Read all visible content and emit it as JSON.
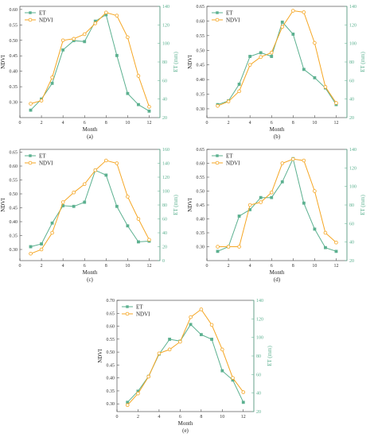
{
  "chart_data": [
    {
      "type": "line",
      "panel_label": "(a)",
      "xlabel": "Month",
      "ylabel": "NDVI",
      "y2label": "ET (mm)",
      "xlim": [
        0,
        13
      ],
      "ylim": [
        0.25,
        0.61
      ],
      "y2lim": [
        20,
        140
      ],
      "xticks": [
        0,
        2,
        4,
        6,
        8,
        10,
        12
      ],
      "yticks": [
        0.3,
        0.35,
        0.4,
        0.45,
        0.5,
        0.55,
        0.6
      ],
      "y2ticks": [
        20,
        40,
        60,
        80,
        100,
        120,
        140
      ],
      "legend": "top-left",
      "x": [
        1,
        2,
        3,
        4,
        5,
        6,
        7,
        8,
        9,
        10,
        11,
        12
      ],
      "series": [
        {
          "name": "ET",
          "axis": "right",
          "color": "#5bb08f",
          "marker": "square",
          "values": [
            28,
            40,
            57,
            93,
            103,
            102,
            124,
            131,
            87,
            46,
            34,
            27
          ]
        },
        {
          "name": "NDVI",
          "axis": "left",
          "color": "#f5a623",
          "marker": "circle",
          "values": [
            0.295,
            0.305,
            0.38,
            0.5,
            0.505,
            0.52,
            0.555,
            0.59,
            0.58,
            0.51,
            0.385,
            0.285
          ]
        }
      ]
    },
    {
      "type": "line",
      "panel_label": "(b)",
      "xlabel": "Month",
      "ylabel": "NDVI",
      "y2label": "ET (mm)",
      "xlim": [
        0,
        13
      ],
      "ylim": [
        0.27,
        0.65
      ],
      "y2lim": [
        20,
        140
      ],
      "xticks": [
        0,
        2,
        4,
        6,
        8,
        10,
        12
      ],
      "yticks": [
        0.3,
        0.35,
        0.4,
        0.45,
        0.5,
        0.55,
        0.6,
        0.65
      ],
      "y2ticks": [
        20,
        40,
        60,
        80,
        100,
        120,
        140
      ],
      "legend": "top-left",
      "x": [
        1,
        2,
        3,
        4,
        5,
        6,
        7,
        8,
        9,
        10,
        11,
        12
      ],
      "series": [
        {
          "name": "ET",
          "axis": "right",
          "color": "#5bb08f",
          "marker": "square",
          "values": [
            34,
            38,
            56,
            86,
            90,
            86,
            123,
            110,
            72,
            63,
            52,
            34
          ]
        },
        {
          "name": "NDVI",
          "axis": "left",
          "color": "#f5a623",
          "marker": "circle",
          "values": [
            0.31,
            0.325,
            0.36,
            0.45,
            0.477,
            0.492,
            0.58,
            0.635,
            0.63,
            0.525,
            0.375,
            0.32
          ]
        }
      ]
    },
    {
      "type": "line",
      "panel_label": "(c)",
      "xlabel": "Month",
      "ylabel": "NDVI",
      "y2label": "ET (mm)",
      "xlim": [
        0,
        13
      ],
      "ylim": [
        0.26,
        0.66
      ],
      "y2lim": [
        0,
        160
      ],
      "xticks": [
        0,
        2,
        4,
        6,
        8,
        10,
        12
      ],
      "yticks": [
        0.3,
        0.35,
        0.4,
        0.45,
        0.5,
        0.55,
        0.6,
        0.65
      ],
      "y2ticks": [
        0,
        20,
        40,
        60,
        80,
        100,
        120,
        140,
        160
      ],
      "legend": "top-left",
      "x": [
        1,
        2,
        3,
        4,
        5,
        6,
        7,
        8,
        9,
        10,
        11,
        12
      ],
      "series": [
        {
          "name": "ET",
          "axis": "right",
          "color": "#5bb08f",
          "marker": "square",
          "values": [
            20,
            24,
            54,
            79,
            78,
            84,
            130,
            123,
            78,
            50,
            27,
            28
          ]
        },
        {
          "name": "NDVI",
          "axis": "left",
          "color": "#f5a623",
          "marker": "circle",
          "values": [
            0.285,
            0.3,
            0.36,
            0.47,
            0.505,
            0.535,
            0.585,
            0.62,
            0.61,
            0.49,
            0.41,
            0.335
          ]
        }
      ]
    },
    {
      "type": "line",
      "panel_label": "(d)",
      "xlabel": "Month",
      "ylabel": "NDVI",
      "y2label": "ET (mm)",
      "xlim": [
        0,
        13
      ],
      "ylim": [
        0.25,
        0.65
      ],
      "y2lim": [
        20,
        140
      ],
      "xticks": [
        0,
        2,
        4,
        6,
        8,
        10,
        12
      ],
      "yticks": [
        0.3,
        0.35,
        0.4,
        0.45,
        0.5,
        0.55,
        0.6,
        0.65
      ],
      "y2ticks": [
        20,
        40,
        60,
        80,
        100,
        120,
        140
      ],
      "legend": "top-left",
      "x": [
        1,
        2,
        3,
        4,
        5,
        6,
        7,
        8,
        9,
        10,
        11,
        12
      ],
      "series": [
        {
          "name": "ET",
          "axis": "right",
          "color": "#5bb08f",
          "marker": "square",
          "values": [
            30,
            35,
            68,
            75,
            88,
            88,
            105,
            130,
            82,
            54,
            34,
            30
          ]
        },
        {
          "name": "NDVI",
          "axis": "left",
          "color": "#f5a623",
          "marker": "circle",
          "values": [
            0.3,
            0.3,
            0.3,
            0.45,
            0.46,
            0.495,
            0.6,
            0.615,
            0.61,
            0.5,
            0.35,
            0.315
          ]
        }
      ]
    },
    {
      "type": "line",
      "panel_label": "(e)",
      "xlabel": "Month",
      "ylabel": "NDVI",
      "y2label": "ET (mm)",
      "xlim": [
        0,
        13
      ],
      "ylim": [
        0.27,
        0.7
      ],
      "y2lim": [
        20,
        140
      ],
      "xticks": [
        0,
        2,
        4,
        6,
        8,
        10,
        12
      ],
      "yticks": [
        0.3,
        0.35,
        0.4,
        0.45,
        0.5,
        0.55,
        0.6,
        0.65,
        0.7
      ],
      "y2ticks": [
        20,
        40,
        60,
        80,
        100,
        120,
        140
      ],
      "legend": "top-left",
      "x": [
        1,
        2,
        3,
        4,
        5,
        6,
        7,
        8,
        9,
        10,
        11,
        12
      ],
      "series": [
        {
          "name": "ET",
          "axis": "right",
          "color": "#5bb08f",
          "marker": "square",
          "values": [
            30,
            42,
            58,
            82,
            98,
            96,
            114,
            103,
            98,
            64,
            54,
            30
          ]
        },
        {
          "name": "NDVI",
          "axis": "left",
          "color": "#f5a623",
          "marker": "circle",
          "values": [
            0.295,
            0.34,
            0.405,
            0.495,
            0.51,
            0.54,
            0.635,
            0.665,
            0.605,
            0.51,
            0.4,
            0.345
          ]
        }
      ]
    }
  ]
}
